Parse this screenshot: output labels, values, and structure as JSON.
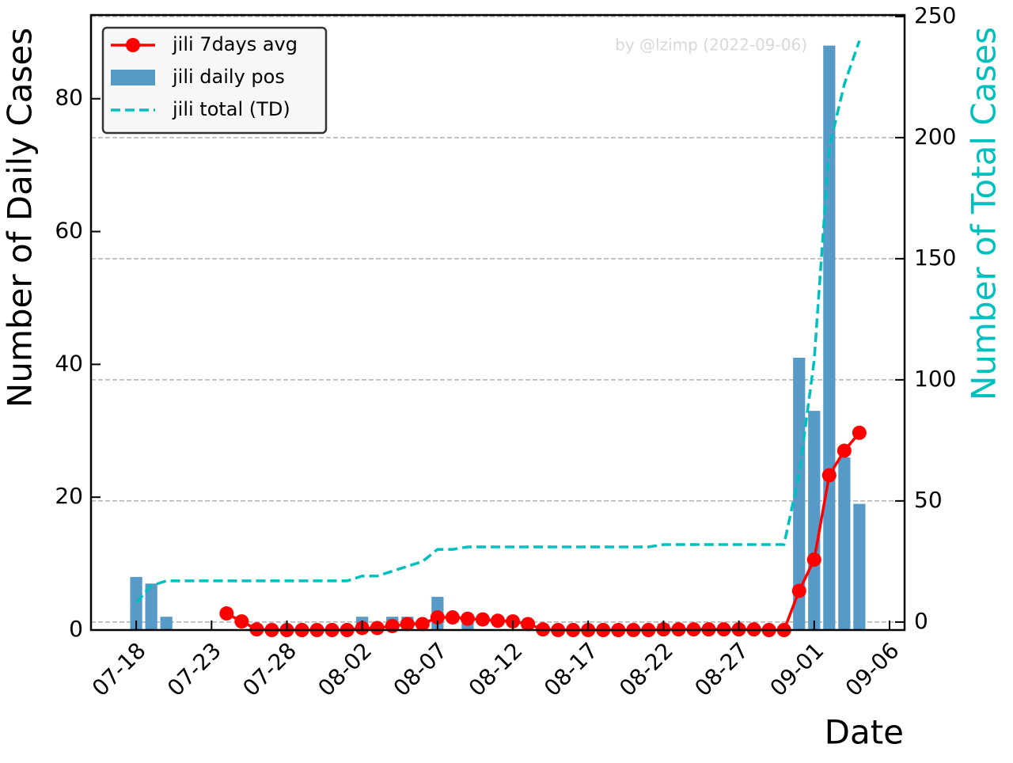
{
  "chart_data": {
    "type": "combo",
    "xlabel": "Date",
    "ylabel": "Number of Daily Cases",
    "y2label": "Number of Total Cases",
    "annotation": "by @lzimp (2022-09-06)",
    "x": [
      "07-18",
      "07-19",
      "07-20",
      "07-21",
      "07-22",
      "07-23",
      "07-24",
      "07-25",
      "07-26",
      "07-27",
      "07-28",
      "07-29",
      "07-30",
      "07-31",
      "08-01",
      "08-02",
      "08-03",
      "08-04",
      "08-05",
      "08-06",
      "08-07",
      "08-08",
      "08-09",
      "08-10",
      "08-11",
      "08-12",
      "08-13",
      "08-14",
      "08-15",
      "08-16",
      "08-17",
      "08-18",
      "08-19",
      "08-20",
      "08-21",
      "08-22",
      "08-23",
      "08-24",
      "08-25",
      "08-26",
      "08-27",
      "08-28",
      "08-29",
      "08-30",
      "08-31",
      "09-01",
      "09-02",
      "09-03",
      "09-04"
    ],
    "series": [
      {
        "name": "jili 7days avg",
        "type": "line",
        "color": "#ff0000",
        "marker": true,
        "values": [
          null,
          null,
          null,
          null,
          null,
          null,
          2.5,
          1.3,
          0.1,
          0,
          0,
          0,
          0,
          0,
          0,
          0.3,
          0.3,
          0.6,
          0.9,
          0.9,
          1.9,
          1.9,
          1.7,
          1.6,
          1.4,
          1.3,
          0.9,
          0.1,
          0,
          0,
          0,
          0,
          0,
          0,
          0,
          0.1,
          0.1,
          0.1,
          0.1,
          0.1,
          0.1,
          0.1,
          0,
          0,
          5.9,
          10.6,
          23.3,
          27,
          29.7
        ]
      },
      {
        "name": "jili daily pos",
        "type": "bar",
        "color": "#5799c7",
        "values": [
          8,
          7,
          2,
          0,
          0,
          0,
          0,
          0,
          0,
          0,
          0,
          0,
          0,
          0,
          0,
          2,
          0,
          2,
          2,
          0,
          5,
          0,
          1,
          0,
          0,
          0,
          0,
          0,
          0,
          0,
          0,
          0,
          0,
          0,
          0,
          1,
          0,
          0,
          0,
          0,
          0,
          0,
          0,
          0,
          41,
          33,
          88,
          26,
          19
        ]
      },
      {
        "name": "jili total (TD)",
        "type": "line",
        "axis": "y2",
        "color": "#00bfbf",
        "dashed": true,
        "values": [
          8,
          15,
          17,
          17,
          17,
          17,
          17,
          17,
          17,
          17,
          17,
          17,
          17,
          17,
          17,
          19,
          19,
          21,
          23,
          25,
          30,
          30,
          31,
          31,
          31,
          31,
          31,
          31,
          31,
          31,
          31,
          31,
          31,
          31,
          31,
          32,
          32,
          32,
          32,
          32,
          32,
          32,
          32,
          32,
          61,
          108,
          196,
          222,
          240
        ]
      }
    ],
    "xlim": [
      "07-15",
      "09-07"
    ],
    "xticks": [
      "07-18",
      "07-23",
      "07-28",
      "08-02",
      "08-07",
      "08-12",
      "08-17",
      "08-22",
      "08-27",
      "09-01",
      "09-06"
    ],
    "ylim": [
      0,
      92.6
    ],
    "yticks": [
      0,
      20,
      40,
      60,
      80
    ],
    "y2lim": [
      -3.3,
      250.6
    ],
    "y2ticks": [
      0,
      50,
      100,
      150,
      200,
      250
    ],
    "grid": "y2",
    "legend": "upper left"
  }
}
